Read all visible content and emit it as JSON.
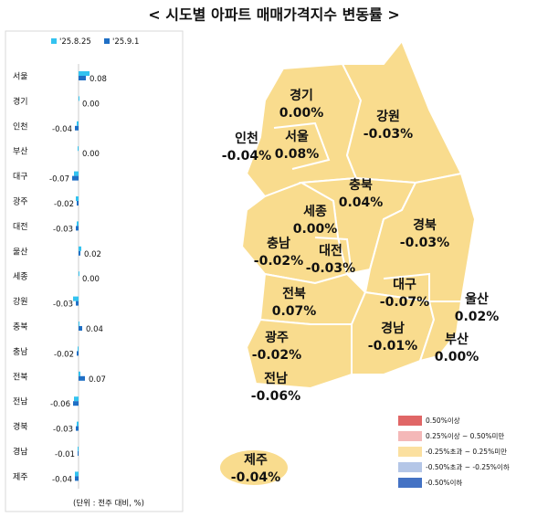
{
  "title": "< 시도별 아파트 매매가격지수 변동률 >",
  "chart_data": {
    "type": "hbar",
    "categories": [
      "서울",
      "경기",
      "인천",
      "부산",
      "대구",
      "광주",
      "대전",
      "울산",
      "세종",
      "강원",
      "충북",
      "충남",
      "전북",
      "전남",
      "경북",
      "경남",
      "제주"
    ],
    "series": [
      {
        "name": "'25.8.25",
        "color": "#33c3f0",
        "values": [
          0.12,
          0.01,
          -0.02,
          -0.01,
          -0.05,
          -0.03,
          -0.02,
          0.03,
          0.01,
          -0.06,
          0.01,
          -0.01,
          0.02,
          -0.05,
          -0.02,
          -0.01,
          -0.04
        ]
      },
      {
        "name": "'25.9.1",
        "color": "#1f6fc5",
        "values": [
          0.08,
          0.0,
          -0.04,
          0.0,
          -0.07,
          -0.02,
          -0.03,
          0.02,
          0.0,
          -0.03,
          0.04,
          -0.02,
          0.07,
          -0.06,
          -0.03,
          -0.01,
          -0.04
        ],
        "value_labels": [
          "0.08",
          "0.00",
          "-0.04",
          "0.00",
          "-0.07",
          "-0.02",
          "-0.03",
          "0.02",
          "0.00",
          "-0.03",
          "0.04",
          "-0.02",
          "0.07",
          "-0.06",
          "-0.03",
          "-0.01",
          "-0.04"
        ]
      }
    ],
    "xlim": [
      -0.4,
      0.4
    ],
    "note": "(단위 : 전주 대비, %)"
  },
  "map": {
    "regions": [
      {
        "name": "경기",
        "value": "0.00%"
      },
      {
        "name": "서울",
        "value": "0.08%"
      },
      {
        "name": "인천",
        "value": "-0.04%"
      },
      {
        "name": "강원",
        "value": "-0.03%"
      },
      {
        "name": "충북",
        "value": "0.04%"
      },
      {
        "name": "세종",
        "value": "0.00%"
      },
      {
        "name": "충남",
        "value": "-0.02%"
      },
      {
        "name": "대전",
        "value": "-0.03%"
      },
      {
        "name": "경북",
        "value": "-0.03%"
      },
      {
        "name": "대구",
        "value": "-0.07%"
      },
      {
        "name": "울산",
        "value": "0.02%"
      },
      {
        "name": "전북",
        "value": "0.07%"
      },
      {
        "name": "광주",
        "value": "-0.02%"
      },
      {
        "name": "경남",
        "value": "-0.01%"
      },
      {
        "name": "부산",
        "value": "0.00%"
      },
      {
        "name": "전남",
        "value": "-0.06%"
      },
      {
        "name": "제주",
        "value": "-0.04%"
      }
    ],
    "legend": [
      {
        "label": "0.50%이상",
        "color": "#e06666"
      },
      {
        "label": "0.25%이상 ~ 0.50%미만",
        "color": "#f4b8b8"
      },
      {
        "label": "-0.25%초과 ~ 0.25%미만",
        "color": "#fbe0a0"
      },
      {
        "label": "-0.50%초과 ~ -0.25%이하",
        "color": "#b4c6e7"
      },
      {
        "label": "-0.50%이하",
        "color": "#4472c4"
      }
    ]
  }
}
